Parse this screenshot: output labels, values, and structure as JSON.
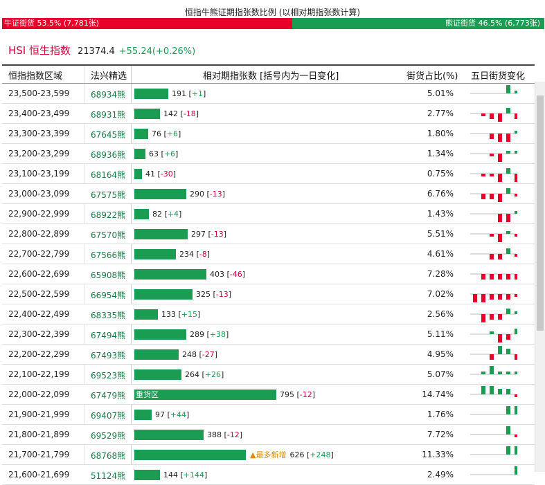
{
  "title": "恒指牛熊证期指张数比例 (以相对期指张数计算)",
  "ratio": {
    "bull_label": "牛证街货 53.5% (7,781张)",
    "bear_label": "熊证街货 46.5% (6,773张)",
    "bull_share": 0.535
  },
  "hsi": {
    "name": "HSI 恒生指数",
    "value": "21374.4",
    "change": "+55.24(+0.26%)"
  },
  "headers": {
    "range": "恒指指数区域",
    "code": "法兴精选",
    "contracts": "相对期指张数 [括号内为一日变化]",
    "pct": "街货占比(%)",
    "trend": "五日街货变化"
  },
  "colors": {
    "bull": "#e8002a",
    "bear": "#1a9c52",
    "brand": "#d2003c"
  },
  "max_contracts": 795,
  "rows": [
    {
      "range": "23,500-23,599",
      "code": "68934熊",
      "count": "191",
      "delta": "+1",
      "pct": "5.01%",
      "spark": [
        0,
        0,
        0,
        0,
        3,
        1
      ]
    },
    {
      "range": "23,400-23,499",
      "code": "68931熊",
      "count": "142",
      "delta": "-18",
      "pct": "2.77%",
      "spark": [
        0,
        -1,
        -2,
        -3,
        2,
        -2
      ]
    },
    {
      "range": "23,300-23,399",
      "code": "67645熊",
      "count": "76",
      "delta": "+6",
      "pct": "1.80%",
      "spark": [
        0,
        0,
        -2,
        -3,
        -3,
        1
      ]
    },
    {
      "range": "23,200-23,299",
      "code": "68936熊",
      "count": "63",
      "delta": "+6",
      "pct": "1.34%",
      "spark": [
        0,
        0,
        -1,
        -3,
        1,
        1
      ]
    },
    {
      "range": "23,100-23,199",
      "code": "68164熊",
      "count": "41",
      "delta": "-30",
      "pct": "0.75%",
      "spark": [
        0,
        -1,
        -1,
        -3,
        2,
        -3
      ]
    },
    {
      "range": "23,000-23,099",
      "code": "67575熊",
      "count": "290",
      "delta": "-13",
      "pct": "6.76%",
      "spark": [
        0,
        -2,
        -2,
        -3,
        2,
        -1
      ]
    },
    {
      "range": "22,900-22,999",
      "code": "68922熊",
      "count": "82",
      "delta": "+4",
      "pct": "1.43%",
      "spark": [
        0,
        0,
        0,
        -3,
        -3,
        1
      ]
    },
    {
      "range": "22,800-22,899",
      "code": "67570熊",
      "count": "297",
      "delta": "-13",
      "pct": "5.51%",
      "spark": [
        0,
        0,
        -1,
        -3,
        1,
        -1
      ]
    },
    {
      "range": "22,700-22,799",
      "code": "67566熊",
      "count": "234",
      "delta": "-8",
      "pct": "4.61%",
      "spark": [
        0,
        0,
        -2,
        -2,
        2,
        -1
      ]
    },
    {
      "range": "22,600-22,699",
      "code": "65908熊",
      "count": "403",
      "delta": "-46",
      "pct": "7.28%",
      "spark": [
        0,
        -2,
        -2,
        -2,
        -2,
        -2
      ]
    },
    {
      "range": "22,500-22,599",
      "code": "66954熊",
      "count": "325",
      "delta": "-13",
      "pct": "7.02%",
      "spark": [
        -3,
        -3,
        -2,
        -2,
        -2,
        -1
      ]
    },
    {
      "range": "22,400-22,499",
      "code": "68335熊",
      "count": "133",
      "delta": "+15",
      "pct": "2.56%",
      "spark": [
        0,
        -3,
        -2,
        -2,
        2,
        1
      ]
    },
    {
      "range": "22,300-22,399",
      "code": "67494熊",
      "count": "289",
      "delta": "+38",
      "pct": "5.11%",
      "spark": [
        0,
        0,
        1,
        -3,
        -2,
        2
      ]
    },
    {
      "range": "22,200-22,299",
      "code": "67493熊",
      "count": "248",
      "delta": "-27",
      "pct": "4.95%",
      "spark": [
        0,
        0,
        -2,
        3,
        2,
        -2
      ]
    },
    {
      "range": "22,100-22,199",
      "code": "69523熊",
      "count": "264",
      "delta": "+26",
      "pct": "5.07%",
      "spark": [
        0,
        1,
        3,
        1,
        1,
        1
      ]
    },
    {
      "range": "22,000-22,099",
      "code": "67479熊",
      "count": "795",
      "delta": "-12",
      "pct": "14.74%",
      "spark": [
        0,
        3,
        3,
        2,
        2,
        -1
      ],
      "note": "重货区"
    },
    {
      "range": "21,900-21,999",
      "code": "69407熊",
      "count": "97",
      "delta": "+44",
      "pct": "1.76%",
      "spark": [
        0,
        0,
        0,
        0,
        3,
        3
      ]
    },
    {
      "range": "21,800-21,899",
      "code": "69529熊",
      "count": "388",
      "delta": "-12",
      "pct": "7.72%",
      "spark": [
        0,
        0,
        0,
        0,
        3,
        -1
      ]
    },
    {
      "range": "21,700-21,799",
      "code": "68768熊",
      "count": "626",
      "delta": "+248",
      "pct": "11.33%",
      "spark": [
        0,
        0,
        0,
        0,
        3,
        3
      ],
      "hot": "▲最多新增"
    },
    {
      "range": "21,600-21,699",
      "code": "51124熊",
      "count": "144",
      "delta": "+144",
      "pct": "2.49%",
      "spark": [
        0,
        0,
        0,
        0,
        0,
        3
      ]
    }
  ]
}
